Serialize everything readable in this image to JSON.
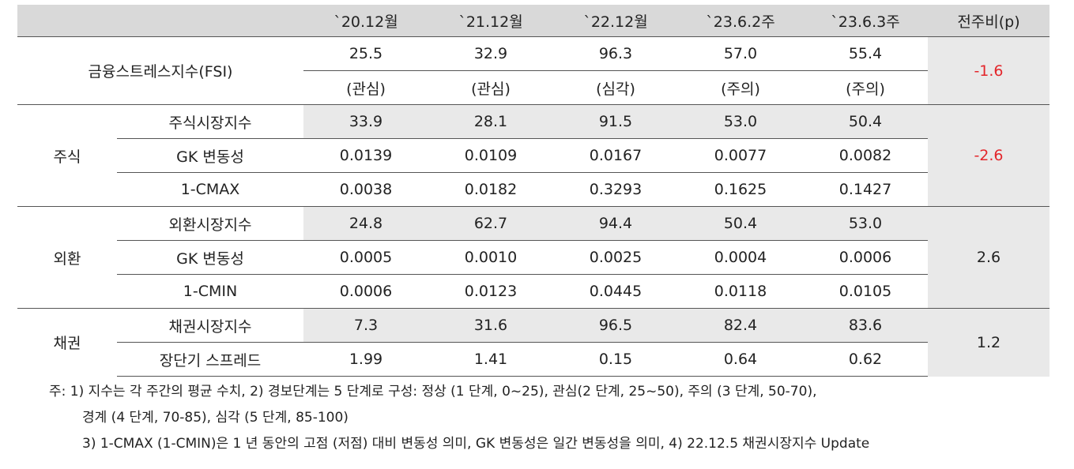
{
  "header": {
    "col0": "",
    "cols": [
      "`20.12월",
      "`21.12월",
      "`22.12월",
      "`23.6.2주",
      "`23.6.3주"
    ],
    "change": "전주비(p)"
  },
  "fsi": {
    "label": "금융스트레스지수(FSI)",
    "values": [
      "25.5",
      "32.9",
      "96.3",
      "57.0",
      "55.4"
    ],
    "levels": [
      "(관심)",
      "(관심)",
      "(심각)",
      "(주의)",
      "(주의)"
    ],
    "change": "-1.6"
  },
  "stock": {
    "label": "주식",
    "change": "-2.6",
    "rows": [
      {
        "label": "주식시장지수",
        "values": [
          "33.9",
          "28.1",
          "91.5",
          "53.0",
          "50.4"
        ]
      },
      {
        "label": "GK 변동성",
        "values": [
          "0.0139",
          "0.0109",
          "0.0167",
          "0.0077",
          "0.0082"
        ]
      },
      {
        "label": "1-CMAX",
        "values": [
          "0.0038",
          "0.0182",
          "0.3293",
          "0.1625",
          "0.1427"
        ]
      }
    ]
  },
  "fx": {
    "label": "외환",
    "change": "2.6",
    "rows": [
      {
        "label": "외환시장지수",
        "values": [
          "24.8",
          "62.7",
          "94.4",
          "50.4",
          "53.0"
        ]
      },
      {
        "label": "GK 변동성",
        "values": [
          "0.0005",
          "0.0010",
          "0.0025",
          "0.0004",
          "0.0006"
        ]
      },
      {
        "label": "1-CMIN",
        "values": [
          "0.0006",
          "0.0123",
          "0.0445",
          "0.0118",
          "0.0105"
        ]
      }
    ]
  },
  "bond": {
    "label": "채권",
    "change": "1.2",
    "rows": [
      {
        "label": "채권시장지수",
        "values": [
          "7.3",
          "31.6",
          "96.5",
          "82.4",
          "83.6"
        ]
      },
      {
        "label": "장단기 스프레드",
        "values": [
          "1.99",
          "1.41",
          "0.15",
          "0.64",
          "0.62"
        ]
      }
    ]
  },
  "notes": {
    "line1": "주: 1) 지수는 각 주간의 평균 수치, 2) 경보단계는 5 단계로 구성: 정상 (1 단계, 0~25), 관심(2 단계, 25~50), 주의 (3 단계, 50-70),",
    "line2": "경계 (4 단계, 70-85), 심각 (5 단계, 85-100)",
    "line3": "3) 1-CMAX (1-CMIN)은 1 년 동안의 고점 (저점) 대비 변동성 의미, GK 변동성은 일간 변동성을 의미, 4) 22.12.5 채권시장지수 Update"
  },
  "colors": {
    "header_bg": "#d9d9d9",
    "cell_bg": "#e9e9e9",
    "negative": "#e3262b"
  }
}
